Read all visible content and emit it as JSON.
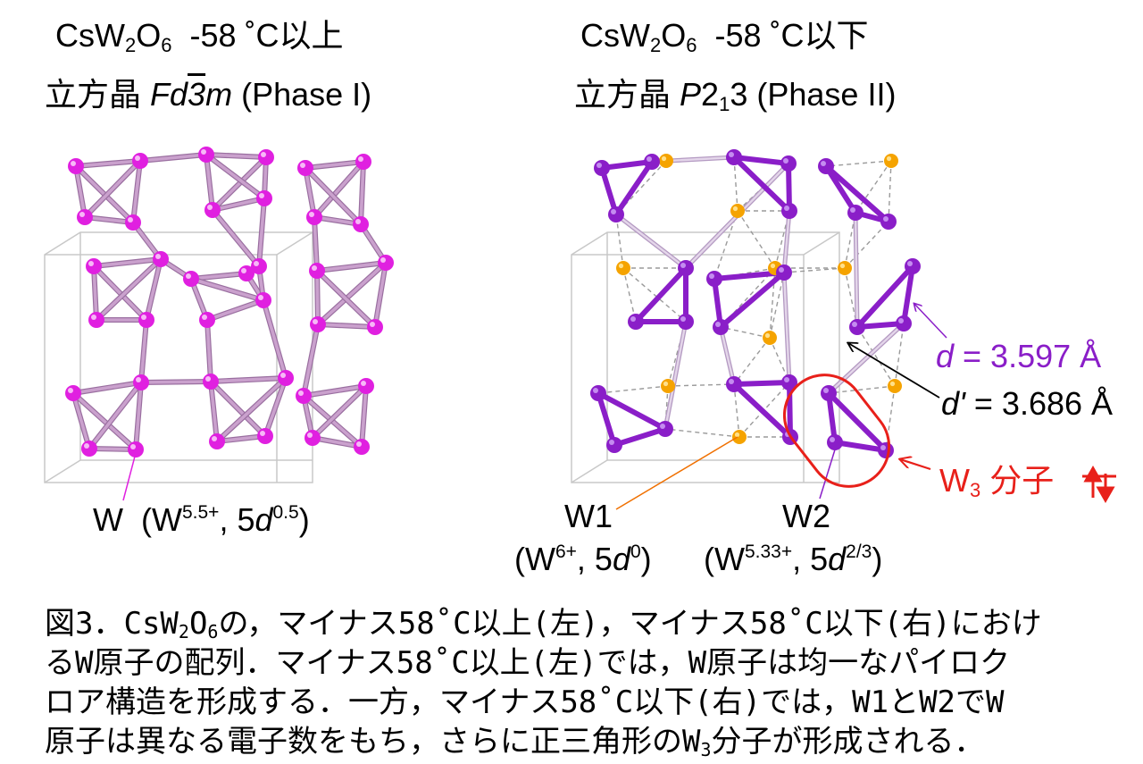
{
  "left_panel": {
    "formula_pre": "CsW",
    "formula_sub1": "2",
    "formula_mid": "O",
    "formula_sub2": "6",
    "temp": "-58 ˚C以上",
    "system": "立方晶",
    "sg_1": "Fd",
    "sg_2": "3",
    "sg_3": "m",
    "phase": "(Phase I)",
    "w_label": "W",
    "w_val_pre": "(W",
    "w_val_sup": "5.5+",
    "w_val_mid": ", 5",
    "w_val_d": "d",
    "w_val_sup2": "0.5",
    "w_val_end": ")",
    "atom_color": "#e020e0",
    "bond_color": "#caa1cd"
  },
  "right_panel": {
    "formula_pre": "CsW",
    "formula_sub1": "2",
    "formula_mid": "O",
    "formula_sub2": "6",
    "temp": "-58 ˚C以下",
    "system": "立方晶",
    "sg_1": "P",
    "sg_2": "2",
    "sg_3": "1",
    "sg_4": "3",
    "phase": "(Phase II)",
    "w1_name": "W1",
    "w1_pre": "(W",
    "w1_sup": "6+",
    "w1_mid": ", 5",
    "w1_d": "d",
    "w1_sup2": "0",
    "w1_end": ")",
    "w2_name": "W2",
    "w2_pre": "(W",
    "w2_sup": "5.33+",
    "w2_mid": ", 5",
    "w2_d": "d",
    "w2_sup2": "2/3",
    "w2_end": ")",
    "d_sym": "d",
    "d_val": " = 3.597 Å",
    "dp_sym": "d'",
    "dp_val": " = 3.686 Å",
    "w3_pre": "W",
    "w3_sub": "3",
    "w3_post": " 分子",
    "w1_color": "#f5a300",
    "w2_color": "#8a1ec8",
    "bond_color": "#8a1ec8",
    "highlight_color": "#e8201a"
  },
  "caption": {
    "line1_pre": "図3．CsW",
    "line1_sub1": "2",
    "line1_mid": "O",
    "line1_sub2": "6",
    "line1_post": "の，マイナス58˚C以上(左)，マイナス58˚C以下(右)におけ",
    "line2": "るW原子の配列．マイナス58˚C以上(左)では，W原子は均一なパイロク",
    "line3": "ロア構造を形成する．一方，マイナス58˚C以下(右)では，W1とW2でW",
    "line4_pre": "原子は異なる電子数をもち，さらに正三角形のW",
    "line4_sub": "3",
    "line4_post": "分子が形成される．"
  }
}
